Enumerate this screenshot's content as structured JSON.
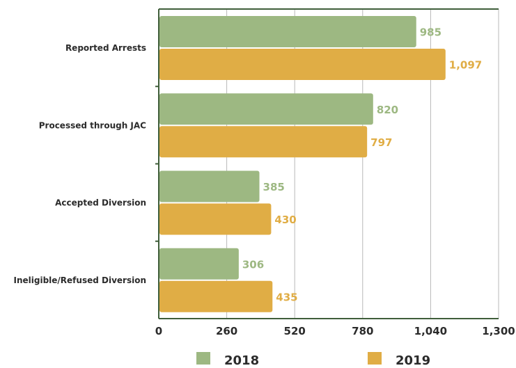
{
  "chart_data": {
    "type": "bar",
    "orientation": "horizontal",
    "title": "",
    "xlabel": "",
    "ylabel": "",
    "categories": [
      "Reported Arrests",
      "Processed through JAC",
      "Accepted Diversion",
      "Ineligible/Refused Diversion"
    ],
    "series": [
      {
        "name": "2018",
        "color": "#9db882",
        "values": [
          985,
          820,
          385,
          306
        ],
        "data_labels": [
          "985",
          "820",
          "385",
          "306"
        ]
      },
      {
        "name": "2019",
        "color": "#e0ad45",
        "values": [
          1097,
          797,
          430,
          435
        ],
        "data_labels": [
          "1,097",
          "797",
          "430",
          "435"
        ]
      }
    ],
    "xlim": [
      0,
      1300
    ],
    "x_ticks": [
      0,
      260,
      520,
      780,
      1040,
      1300
    ],
    "x_tick_labels": [
      "0",
      "260",
      "520",
      "780",
      "1,040",
      "1,300"
    ],
    "grid": "vertical",
    "axis_color": "#3f5e3a",
    "grid_color": "#b8b8b8",
    "legend_position": "bottom"
  }
}
